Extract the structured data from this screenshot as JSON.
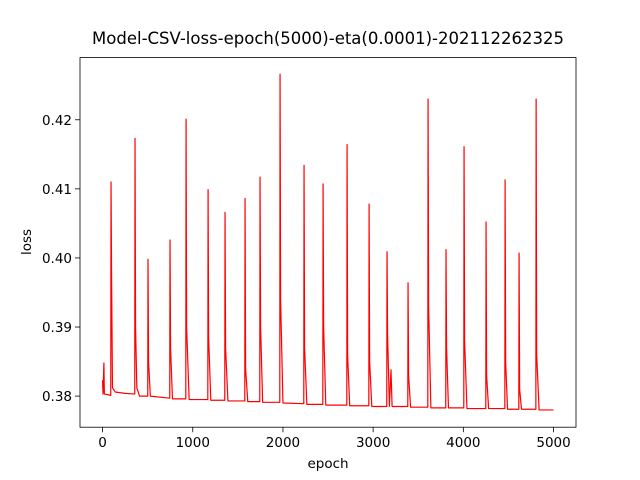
{
  "chart_data": {
    "type": "line",
    "title": "Model-CSV-loss-epoch(5000)-eta(0.0001)-202112262325",
    "x_label": "epoch",
    "y_label": "loss",
    "color": "#ff0000",
    "xlim": [
      -250,
      5249
    ],
    "ylim": [
      0.3755,
      0.429
    ],
    "xticks": [
      0,
      1000,
      2000,
      3000,
      4000,
      5000
    ],
    "yticks": [
      0.38,
      0.39,
      {
        "value": 0.4,
        "label": "0.40"
      },
      0.41,
      0.42
    ],
    "x": [
      0,
      5,
      15,
      20,
      60,
      91,
      94,
      100,
      110,
      140,
      250,
      357,
      360,
      366,
      380,
      410,
      501,
      504,
      510,
      530,
      745,
      748,
      754,
      775,
      923,
      926,
      932,
      960,
      1167,
      1170,
      1176,
      1200,
      1355,
      1358,
      1364,
      1390,
      1577,
      1580,
      1586,
      1610,
      1743,
      1746,
      1752,
      1775,
      1965,
      1968,
      1974,
      2000,
      2231,
      2234,
      2240,
      2265,
      2442,
      2445,
      2451,
      2475,
      2708,
      2711,
      2717,
      2740,
      2952,
      2955,
      2961,
      2985,
      3151,
      3154,
      3160,
      3180,
      3198,
      3210,
      3384,
      3387,
      3393,
      3415,
      3606,
      3609,
      3615,
      3640,
      3805,
      3808,
      3814,
      3835,
      4005,
      4008,
      4014,
      4040,
      4249,
      4252,
      4258,
      4280,
      4460,
      4463,
      4469,
      4490,
      4615,
      4618,
      4624,
      4645,
      4804,
      4807,
      4813,
      4840,
      4999
    ],
    "values": [
      0.3823,
      0.3803,
      0.3848,
      0.3803,
      0.3802,
      0.3801,
      0.411,
      0.3975,
      0.3812,
      0.3806,
      0.3804,
      0.3803,
      0.4173,
      0.39,
      0.3812,
      0.38,
      0.38,
      0.3998,
      0.385,
      0.38,
      0.3797,
      0.4026,
      0.387,
      0.3796,
      0.3796,
      0.4201,
      0.39,
      0.3795,
      0.3795,
      0.4099,
      0.3885,
      0.3794,
      0.3794,
      0.4066,
      0.387,
      0.3793,
      0.3793,
      0.4086,
      0.384,
      0.3792,
      0.3792,
      0.4117,
      0.39,
      0.3791,
      0.3791,
      0.4266,
      0.394,
      0.379,
      0.3789,
      0.4134,
      0.387,
      0.3788,
      0.3788,
      0.4107,
      0.39,
      0.3787,
      0.3787,
      0.4164,
      0.386,
      0.3786,
      0.3786,
      0.4078,
      0.385,
      0.3785,
      0.3785,
      0.4009,
      0.389,
      0.3785,
      0.3838,
      0.3785,
      0.3785,
      0.3964,
      0.383,
      0.3784,
      0.3784,
      0.423,
      0.393,
      0.3783,
      0.3783,
      0.4012,
      0.387,
      0.3783,
      0.3783,
      0.4161,
      0.388,
      0.3782,
      0.3782,
      0.4052,
      0.383,
      0.3782,
      0.3782,
      0.4113,
      0.385,
      0.3781,
      0.3781,
      0.4007,
      0.381,
      0.3781,
      0.3781,
      0.423,
      0.386,
      0.378,
      0.378
    ]
  }
}
